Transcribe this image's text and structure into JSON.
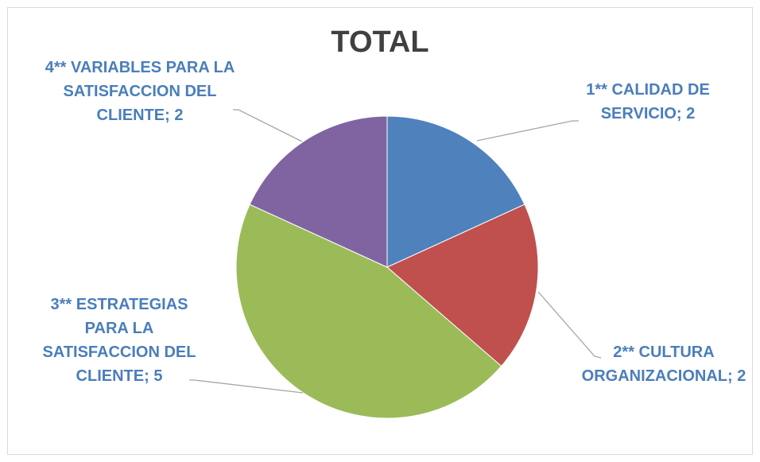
{
  "chart_data": {
    "type": "pie",
    "title": "TOTAL",
    "values": [
      2,
      2,
      5,
      2
    ],
    "value_labels": [
      "1** CALIDAD DE SERVICIO; 2",
      "2** CULTURA ORGANIZACIONAL; 2",
      "3** ESTRATEGIAS PARA LA SATISFACCION DEL CLIENTE; 5",
      "4** VARIABLES PARA LA SATISFACCION DEL CLIENTE; 2"
    ],
    "colors": [
      "#4f81bd",
      "#c0504d",
      "#9bbb59",
      "#8064a2"
    ]
  }
}
